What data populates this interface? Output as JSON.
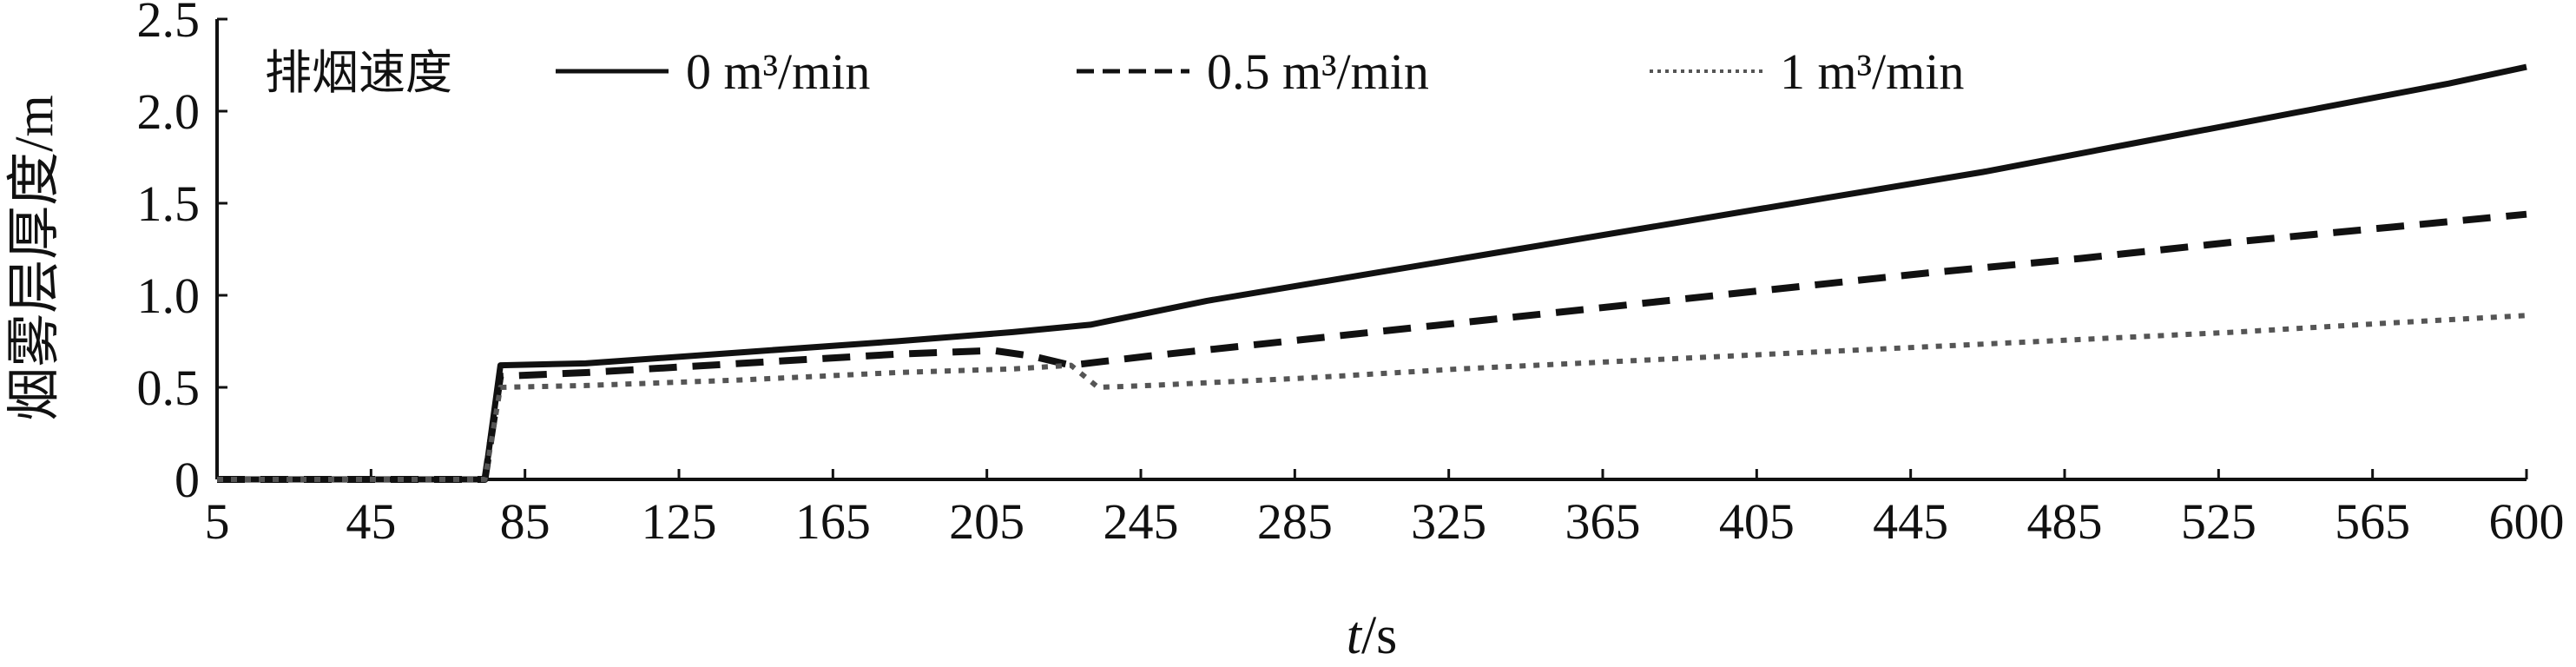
{
  "chart_data": {
    "type": "line",
    "xlabel_italic": "t",
    "xlabel_rest": "/s",
    "ylabel": "烟雾层厚度/m",
    "x_ticks": [
      "5",
      "45",
      "85",
      "125",
      "165",
      "205",
      "245",
      "285",
      "325",
      "365",
      "405",
      "445",
      "485",
      "525",
      "565",
      "600"
    ],
    "y_ticks": [
      "0",
      "0.5",
      "1.0",
      "1.5",
      "2.0",
      "2.5"
    ],
    "xlim": [
      5,
      600
    ],
    "ylim": [
      0,
      2.5
    ],
    "grid": false,
    "legend": {
      "title": "排烟速度",
      "placement": "top-left"
    },
    "series": [
      {
        "name": "0 m³/min",
        "style": "solid",
        "color": "#111111",
        "x": [
          5,
          70,
          74,
          78,
          100,
          140,
          180,
          210,
          230,
          260,
          300,
          340,
          380,
          420,
          460,
          500,
          540,
          580,
          600
        ],
        "y": [
          0,
          0,
          0,
          0.62,
          0.63,
          0.69,
          0.75,
          0.8,
          0.84,
          0.97,
          1.11,
          1.25,
          1.39,
          1.53,
          1.67,
          1.83,
          1.99,
          2.15,
          2.24
        ]
      },
      {
        "name": "0.5 m³/min",
        "style": "dashed",
        "color": "#111111",
        "x": [
          5,
          70,
          74,
          78,
          100,
          140,
          180,
          205,
          215,
          225,
          245,
          285,
          325,
          365,
          405,
          445,
          485,
          525,
          565,
          600
        ],
        "y": [
          0,
          0,
          0,
          0.56,
          0.58,
          0.63,
          0.68,
          0.7,
          0.67,
          0.62,
          0.67,
          0.76,
          0.85,
          0.94,
          1.03,
          1.12,
          1.2,
          1.29,
          1.37,
          1.44
        ]
      },
      {
        "name": "1 m³/min",
        "style": "dotted",
        "color": "#555555",
        "x": [
          5,
          70,
          74,
          78,
          100,
          140,
          180,
          210,
          225,
          232,
          245,
          285,
          325,
          365,
          405,
          445,
          485,
          525,
          565,
          600
        ],
        "y": [
          0,
          0,
          0,
          0.5,
          0.51,
          0.54,
          0.58,
          0.6,
          0.62,
          0.5,
          0.51,
          0.55,
          0.6,
          0.64,
          0.68,
          0.72,
          0.76,
          0.8,
          0.85,
          0.89
        ]
      }
    ]
  }
}
